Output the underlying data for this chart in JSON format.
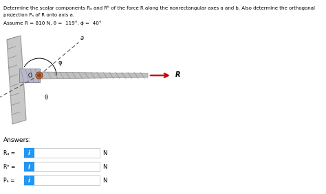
{
  "title_line1": "Determine the scalar components Rₐ and Rᵇ of the force R along the nonrectangular axes a and b. Also determine the orthogonal",
  "title_line2": "projection Pₐ of R onto axis a.",
  "title_line3": "Assume R = 810 N, θ =  119°, ϕ =  40°",
  "answers_label": "Answers:",
  "row_labels": [
    "Rₐ =",
    "Rᵇ =",
    "Pₐ ="
  ],
  "unit": "N",
  "background": "#ffffff",
  "text_color": "#000000",
  "blue_btn_color": "#2196F3",
  "arrow_color": "#cc0000",
  "wall_color": "#c8c8c8",
  "wall_edge": "#999999",
  "rod_color": "#b0b0b0",
  "rod_edge": "#808080",
  "pin_color": "#cc7744",
  "bracket_color": "#aaaaaa",
  "dashed_color": "#555555",
  "input_border": "#cccccc"
}
